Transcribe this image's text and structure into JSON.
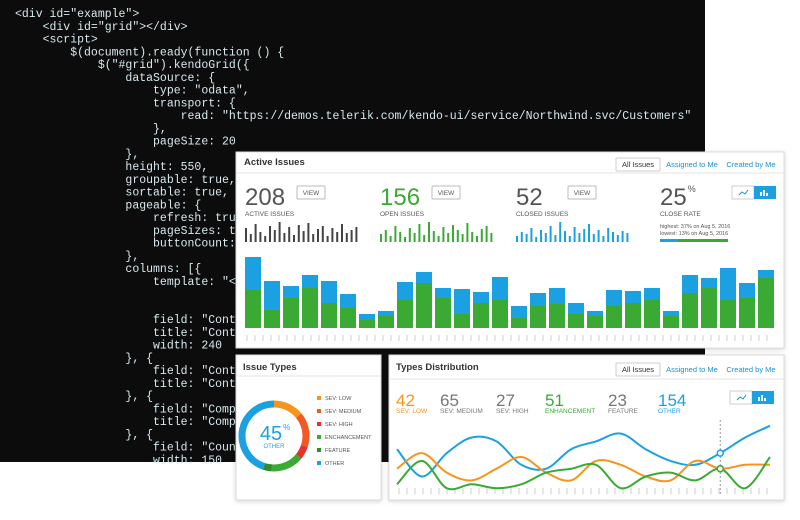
{
  "code": {
    "lines": [
      "<div id=\"example\">",
      "    <div id=\"grid\"></div>",
      "    <script>",
      "        $(document).ready(function () {",
      "            $(\"#grid\").kendoGrid({",
      "                dataSource: {",
      "                    type: \"odata\",",
      "                    transport: {",
      "                        read: \"https://demos.telerik.com/kendo-ui/service/Northwind.svc/Customers\"",
      "                    },",
      "                    pageSize: 20",
      "                },",
      "                height: 550,",
      "                groupable: true,",
      "                sortable: true,",
      "                pageable: {",
      "                    refresh: true",
      "                    pageSizes: tr",
      "                    buttonCount: ",
      "                },",
      "                columns: [{",
      "                    template: \"<d",
      "                    field: \"Conta",
      "                    title: \"Conta",
      "                    width: 240",
      "                }, {",
      "                    field: \"Conta",
      "                    title: \"Conta",
      "                }, {",
      "                    field: \"Compa",
      "                    title: \"Compa",
      "                }, {",
      "                    field: \"Count",
      "                    width: 150"
    ]
  },
  "active_issues": {
    "title": "Active Issues",
    "tabs": [
      "All Issues",
      "Assigned to Me",
      "Created by Me"
    ],
    "stats": [
      {
        "value": 208,
        "label": "ACTIVE ISSUES",
        "button": "VIEW",
        "color": "#555555",
        "spark_color": "#444444",
        "spark": [
          14,
          8,
          18,
          10,
          6,
          16,
          12,
          20,
          9,
          15,
          7,
          17,
          11,
          19,
          8,
          13,
          16,
          6,
          14,
          10,
          18,
          9,
          12,
          15
        ]
      },
      {
        "value": 156,
        "label": "OPEN ISSUES",
        "button": "VIEW",
        "color": "#3aaa35",
        "spark_color": "#3aaa35",
        "spark": [
          8,
          12,
          6,
          16,
          10,
          5,
          14,
          9,
          18,
          7,
          20,
          11,
          6,
          15,
          9,
          17,
          12,
          8,
          19,
          10,
          6,
          13,
          16,
          9
        ]
      },
      {
        "value": 52,
        "label": "CLOSED ISSUES",
        "button": "VIEW",
        "color": "#555555",
        "spark_color": "#1ba1e2",
        "spark": [
          6,
          10,
          8,
          14,
          5,
          12,
          9,
          16,
          7,
          20,
          11,
          6,
          15,
          9,
          13,
          18,
          8,
          12,
          6,
          14,
          10,
          7,
          11,
          9
        ]
      }
    ],
    "close_rate": {
      "value": 25,
      "unit": "%",
      "label": "CLOSE RATE",
      "highest": "highest: 37% on Aug 5, 2016",
      "lowest": "lowest: 13% on Aug 5, 2016"
    },
    "bars": {
      "type": "bar",
      "series": [
        {
          "color": "#3aaa35",
          "values": [
            38,
            18,
            30,
            40,
            25,
            20,
            8,
            12,
            28,
            45,
            30,
            14,
            25,
            28,
            10,
            22,
            24,
            14,
            12,
            22,
            25,
            28,
            12,
            35,
            40,
            28,
            30,
            50
          ]
        },
        {
          "color": "#1ba1e2",
          "values": [
            33,
            29,
            12,
            13,
            22,
            14,
            6,
            5,
            18,
            11,
            10,
            25,
            11,
            23,
            12,
            13,
            16,
            11,
            5,
            16,
            12,
            12,
            5,
            18,
            10,
            32,
            15,
            8
          ]
        }
      ]
    }
  },
  "issue_types": {
    "title": "Issue Types",
    "type": "donut",
    "center": {
      "value": 45,
      "unit": "%",
      "label": "OTHER"
    },
    "categories": [
      "SEV: LOW",
      "SEV: MEDIUM",
      "SEV: HIGH",
      "ENCHANCEMENT",
      "FEATURE",
      "OTHER"
    ],
    "colors": [
      "#f7941d",
      "#f15a24",
      "#e8312f",
      "#3aaa35",
      "#2e8b2e",
      "#1ba1e2"
    ],
    "values": [
      14,
      16,
      6,
      15,
      4,
      45
    ]
  },
  "types_distribution": {
    "title": "Types Distribution",
    "tabs": [
      "All Issues",
      "Assigned to Me",
      "Created by Me"
    ],
    "stats": [
      {
        "value": 42,
        "label": "SEV: LOW",
        "color": "#f7941d"
      },
      {
        "value": 65,
        "label": "SEV: MEDIUM",
        "color": "#777777"
      },
      {
        "value": 27,
        "label": "SEV: HIGH",
        "color": "#777777"
      },
      {
        "value": 51,
        "label": "ENHANCEMENT",
        "color": "#3aaa35"
      },
      {
        "value": 23,
        "label": "FEATURE",
        "color": "#777777"
      },
      {
        "value": 154,
        "label": "OTHER",
        "color": "#1ba1e2"
      }
    ],
    "type": "line",
    "series": [
      {
        "color": "#1ba1e2",
        "values": [
          60,
          25,
          55,
          75,
          70,
          40,
          35,
          60,
          70,
          80,
          60,
          45,
          40,
          55,
          75,
          90
        ]
      },
      {
        "color": "#f7941d",
        "values": [
          35,
          55,
          30,
          20,
          35,
          50,
          30,
          20,
          45,
          40,
          25,
          20,
          45,
          35,
          40,
          40
        ]
      },
      {
        "color": "#3aaa35",
        "values": [
          15,
          45,
          10,
          15,
          10,
          15,
          30,
          35,
          40,
          10,
          25,
          30,
          20,
          35,
          10,
          50
        ]
      }
    ]
  }
}
